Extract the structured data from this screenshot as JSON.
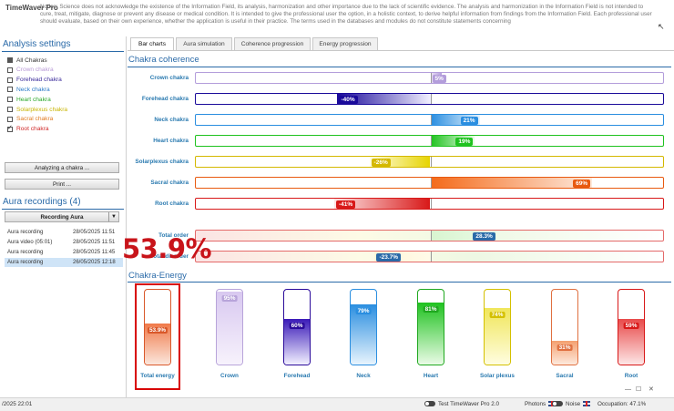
{
  "header": {
    "app_name": "TimeWaver Pro",
    "notice": "Notice: Science does not acknowledge the existence of the Information Field, its analysis, harmonization and other importance due to the lack of scientific evidence. The analysis and harmonization in the Information Field is not intended to cure, treat, mitigate, diagnose or prevent any disease or medical condition. It is intended to give the professional user the option, in a holistic context, to derive helpful information from findings from the Information Field. Each professional user should evaluate, based on their own experience, whether the application is useful in their practice. The terms used in the databases and modules do not constitute statements concerning"
  },
  "left": {
    "analysis_title": "Analysis settings",
    "chakras": [
      {
        "label": "All Chakras",
        "checked": "filled",
        "color": "#333333"
      },
      {
        "label": "Crown chakra",
        "checked": "no",
        "color": "#b89ad6"
      },
      {
        "label": "Forehead chakra",
        "checked": "no",
        "color": "#3a2a9a"
      },
      {
        "label": "Neck chakra",
        "checked": "no",
        "color": "#2a7ac8"
      },
      {
        "label": "Heart chakra",
        "checked": "no",
        "color": "#2aa82a"
      },
      {
        "label": "Solarplexus chakra",
        "checked": "no",
        "color": "#c8b400"
      },
      {
        "label": "Sacral chakra",
        "checked": "no",
        "color": "#e07a20"
      },
      {
        "label": "Root chakra",
        "checked": "yes",
        "color": "#d02a2a"
      }
    ],
    "analyze_button": "Analyzing a chakra ...",
    "print_button": "Print ...",
    "aura_title": "Aura recordings (4)",
    "recording_dropdown": "Recording Aura",
    "recordings": [
      {
        "name": "Aura recording",
        "date": "28/05/2025 11:51"
      },
      {
        "name": "Aura video (05:01)",
        "date": "28/05/2025 11:51"
      },
      {
        "name": "Aura recording",
        "date": "28/05/2025 11:45"
      },
      {
        "name": "Aura recording",
        "date": "26/05/2025 12:18"
      }
    ]
  },
  "tabs": [
    "Bar charts",
    "Aura simulation",
    "Coherence progression",
    "Energy progression"
  ],
  "coherence": {
    "title": "Chakra coherence",
    "bars": [
      {
        "label": "Crown chakra",
        "value": 5,
        "text": "5%",
        "from": "#efe6f8",
        "to": "#b39ddb",
        "tag": "#b39ddb"
      },
      {
        "label": "Forehead chakra",
        "value": -40,
        "text": "-40%",
        "from": "#1a0a9a",
        "to": "#f2f0ff",
        "tag": "#1a0a9a"
      },
      {
        "label": "Neck chakra",
        "value": 21,
        "text": "21%",
        "from": "#2a8ee0",
        "to": "#e6f3fd",
        "tag": "#2a8ee0"
      },
      {
        "label": "Heart chakra",
        "value": 19,
        "text": "19%",
        "from": "#1fc21f",
        "to": "#eafbe6",
        "tag": "#1fc21f"
      },
      {
        "label": "Solarplexus chakra",
        "value": -26,
        "text": "-26%",
        "from": "#fffde6",
        "to": "#e6d400",
        "tag": "#d4b800"
      },
      {
        "label": "Sacral chakra",
        "value": 69,
        "text": "69%",
        "from": "#f46a1a",
        "to": "#fde9dc",
        "tag": "#e85a10"
      },
      {
        "label": "Root chakra",
        "value": -41,
        "text": "-41%",
        "from": "#fde4e4",
        "to": "#d81818",
        "tag": "#d81818"
      }
    ],
    "totals": [
      {
        "label": "Total order",
        "value": 28.3,
        "text": "28.3%",
        "tag": "#2a6aa8"
      },
      {
        "label": "Total disorder",
        "value": -23.7,
        "text": "-23.7%",
        "tag": "#2a6aa8"
      }
    ]
  },
  "energy": {
    "title": "Chakra-Energy",
    "highlight": "53.9%",
    "columns": [
      {
        "label": "Total energy",
        "value": 53.9,
        "text": "53.9%",
        "from": "#fbe6dc",
        "to": "#f07a4a",
        "tag": "#d9582a"
      },
      {
        "label": "Crown",
        "value": 95,
        "text": "95%",
        "from": "#f7f2fc",
        "to": "#d8c8f0",
        "tag": "#b8a4da"
      },
      {
        "label": "Forehead",
        "value": 60,
        "text": "60%",
        "from": "#f2f0ff",
        "to": "#3a1ab8",
        "tag": "#2a0a9a"
      },
      {
        "label": "Neck",
        "value": 79,
        "text": "79%",
        "from": "#e8f4fd",
        "to": "#2a8ee0",
        "tag": "#2a8ee0"
      },
      {
        "label": "Heart",
        "value": 81,
        "text": "81%",
        "from": "#eafbe6",
        "to": "#1fc21f",
        "tag": "#1fa81f"
      },
      {
        "label": "Solar plexus",
        "value": 74,
        "text": "74%",
        "from": "#fffde0",
        "to": "#f0e65a",
        "tag": "#d4c000"
      },
      {
        "label": "Sacral",
        "value": 31,
        "text": "31%",
        "from": "#fde9dc",
        "to": "#f4a070",
        "tag": "#e07040"
      },
      {
        "label": "Root",
        "value": 59,
        "text": "59%",
        "from": "#fde6e6",
        "to": "#e84a4a",
        "tag": "#d81818"
      }
    ]
  },
  "status": {
    "date": "/2025 22:01",
    "test_label": "Test TimeWaver Pro 2.0",
    "photons": "Photons",
    "noise": "Noise",
    "occupation": "Occupation: 47.1%"
  }
}
